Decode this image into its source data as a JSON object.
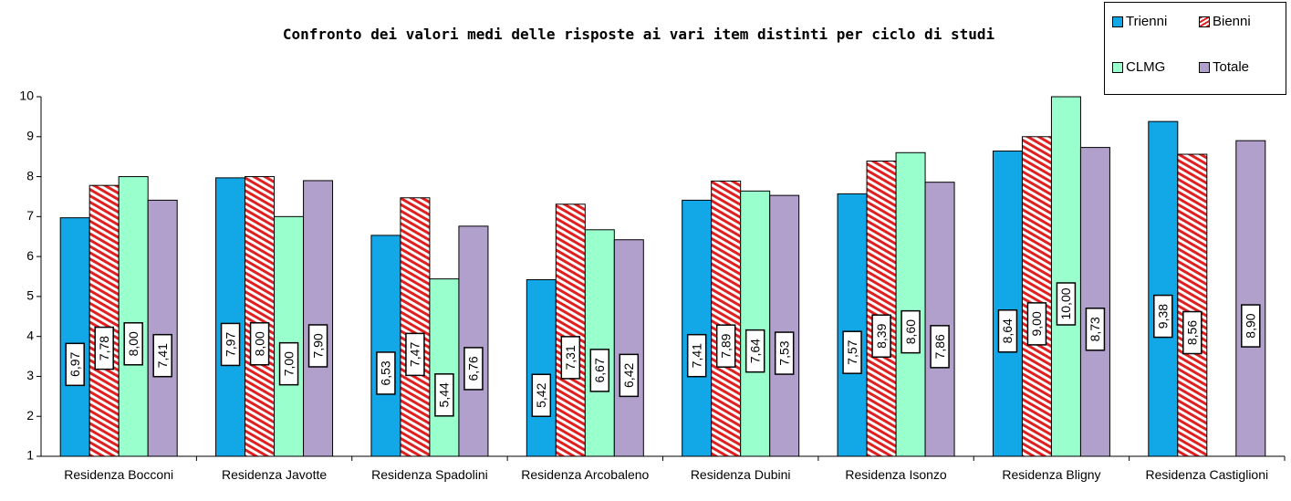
{
  "chart_data": {
    "type": "bar",
    "title": "Confronto dei valori medi delle risposte ai vari item distinti per ciclo di studi",
    "categories": [
      "Residenza Bocconi",
      "Residenza Javotte",
      "Residenza Spadolini",
      "Residenza Arcobaleno",
      "Residenza Dubini",
      "Residenza Isonzo",
      "Residenza Bligny",
      "Residenza Castiglioni"
    ],
    "series": [
      {
        "name": "Trienni",
        "color": "#12a8e8",
        "values": [
          6.97,
          7.97,
          6.53,
          5.42,
          7.41,
          7.57,
          8.64,
          9.38
        ],
        "value_labels": [
          "6,97",
          "7,97",
          "6,53",
          "5,42",
          "7,41",
          "7,57",
          "8,64",
          "9,38"
        ]
      },
      {
        "name": "Bienni",
        "color": "#e02020",
        "hatch": true,
        "values": [
          7.78,
          8.0,
          7.47,
          7.31,
          7.89,
          8.39,
          9.0,
          8.56
        ],
        "value_labels": [
          "7,78",
          "8,00",
          "7,47",
          "7,31",
          "7,89",
          "8,39",
          "9,00",
          "8,56"
        ]
      },
      {
        "name": "CLMG",
        "color": "#99ffcc",
        "values": [
          8.0,
          7.0,
          5.44,
          6.67,
          7.64,
          8.6,
          10.0,
          null
        ],
        "value_labels": [
          "8,00",
          "7,00",
          "5,44",
          "6,67",
          "7,64",
          "8,60",
          "10,00",
          null
        ]
      },
      {
        "name": "Totale",
        "color": "#b1a0cb",
        "values": [
          7.41,
          7.9,
          6.76,
          6.42,
          7.53,
          7.86,
          8.73,
          8.9
        ],
        "value_labels": [
          "7,41",
          "7,90",
          "6,76",
          "6,42",
          "7,53",
          "7,86",
          "8,73",
          "8,90"
        ]
      }
    ],
    "ylim": [
      1,
      10
    ],
    "yticks": [
      1,
      2,
      3,
      4,
      5,
      6,
      7,
      8,
      9,
      10
    ],
    "grid": false,
    "legend": "top-right"
  }
}
